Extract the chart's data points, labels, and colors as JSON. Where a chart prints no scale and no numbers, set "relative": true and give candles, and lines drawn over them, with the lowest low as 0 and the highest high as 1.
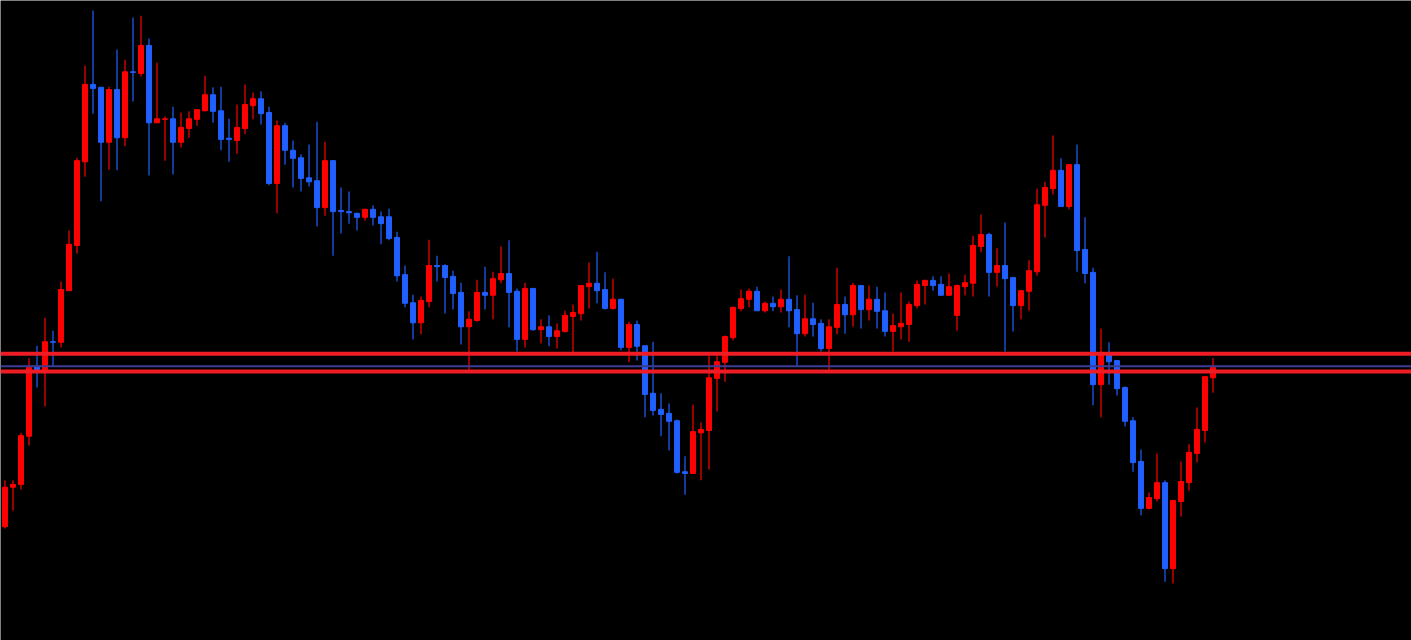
{
  "chart_data": {
    "type": "candlestick",
    "relative": true,
    "categories": [
      null,
      null,
      null,
      null,
      null,
      null,
      null,
      null,
      null,
      null,
      null,
      null,
      null,
      null,
      null,
      null,
      null,
      null,
      null,
      null,
      null,
      null,
      null,
      null,
      null,
      null,
      null,
      null,
      null,
      null,
      null,
      null,
      null,
      null,
      null,
      null,
      null,
      null,
      null,
      null,
      null,
      null,
      null,
      null,
      null,
      null,
      null,
      null,
      null,
      null,
      null,
      null,
      null,
      null,
      null,
      null,
      null,
      null,
      null,
      null,
      null,
      null,
      null,
      null,
      null,
      null,
      null,
      null,
      null,
      null,
      null,
      null,
      null,
      null,
      null,
      null,
      null,
      null,
      null,
      null,
      null,
      null,
      null,
      null,
      null,
      null,
      null,
      null,
      null,
      null,
      null,
      null,
      null,
      null,
      null,
      null,
      null,
      null,
      null,
      null,
      null,
      null,
      null,
      null,
      null,
      null,
      null,
      null,
      null,
      null,
      null,
      null,
      null,
      null,
      null,
      null,
      null,
      null,
      null,
      null,
      null,
      null,
      null,
      null,
      null,
      null,
      null,
      null,
      null,
      null,
      null,
      null,
      null,
      null,
      null,
      null,
      null,
      null,
      null,
      null,
      null,
      null,
      null,
      null,
      null,
      null,
      null,
      null,
      null,
      null,
      null,
      null
    ],
    "ohlc": [
      [
        0.099,
        0.18,
        0.096,
        0.168
      ],
      [
        0.168,
        0.18,
        0.127,
        0.173
      ],
      [
        0.173,
        0.263,
        0.164,
        0.258
      ],
      [
        0.257,
        0.393,
        0.241,
        0.377
      ],
      [
        0.379,
        0.415,
        0.342,
        0.373
      ],
      [
        0.373,
        0.464,
        0.309,
        0.422
      ],
      [
        0.422,
        0.441,
        0.379,
        0.421
      ],
      [
        0.421,
        0.527,
        0.412,
        0.513
      ],
      [
        0.511,
        0.616,
        0.511,
        0.592
      ],
      [
        0.59,
        0.743,
        0.576,
        0.738
      ],
      [
        0.736,
        0.904,
        0.71,
        0.871
      ],
      [
        0.871,
        1,
        0.82,
        0.864
      ],
      [
        0.866,
        0.866,
        0.667,
        0.77
      ],
      [
        0.77,
        0.867,
        0.722,
        0.862
      ],
      [
        0.862,
        0.932,
        0.721,
        0.778
      ],
      [
        0.778,
        0.914,
        0.763,
        0.893
      ],
      [
        0.893,
        0.988,
        0.841,
        0.892
      ],
      [
        0.89,
        0.991,
        0.885,
        0.939
      ],
      [
        0.939,
        0.951,
        0.712,
        0.804
      ],
      [
        0.804,
        0.909,
        0.804,
        0.811
      ],
      [
        0.81,
        0.815,
        0.738,
        0.811
      ],
      [
        0.811,
        0.832,
        0.714,
        0.77
      ],
      [
        0.77,
        0.822,
        0.761,
        0.796
      ],
      [
        0.794,
        0.824,
        0.778,
        0.811
      ],
      [
        0.81,
        0.827,
        0.799,
        0.827
      ],
      [
        0.825,
        0.886,
        0.824,
        0.853
      ],
      [
        0.853,
        0.866,
        0.804,
        0.824
      ],
      [
        0.825,
        0.867,
        0.756,
        0.775
      ],
      [
        0.777,
        0.811,
        0.736,
        0.775
      ],
      [
        0.773,
        0.836,
        0.75,
        0.796
      ],
      [
        0.794,
        0.871,
        0.784,
        0.836
      ],
      [
        0.834,
        0.857,
        0.81,
        0.846
      ],
      [
        0.846,
        0.859,
        0.801,
        0.82
      ],
      [
        0.822,
        0.832,
        0.695,
        0.698
      ],
      [
        0.698,
        0.808,
        0.646,
        0.799
      ],
      [
        0.799,
        0.804,
        0.731,
        0.756
      ],
      [
        0.756,
        0.773,
        0.691,
        0.742
      ],
      [
        0.743,
        0.749,
        0.684,
        0.707
      ],
      [
        0.708,
        0.766,
        0.693,
        0.701
      ],
      [
        0.703,
        0.806,
        0.623,
        0.656
      ],
      [
        0.656,
        0.771,
        0.642,
        0.738
      ],
      [
        0.738,
        0.738,
        0.572,
        0.649
      ],
      [
        0.651,
        0.691,
        0.611,
        0.649
      ],
      [
        0.649,
        0.684,
        0.628,
        0.647
      ],
      [
        0.646,
        0.647,
        0.616,
        0.639
      ],
      [
        0.639,
        0.654,
        0.633,
        0.653
      ],
      [
        0.653,
        0.66,
        0.625,
        0.639
      ],
      [
        0.64,
        0.649,
        0.592,
        0.628
      ],
      [
        0.64,
        0.654,
        0.599,
        0.602
      ],
      [
        0.604,
        0.614,
        0.527,
        0.537
      ],
      [
        0.539,
        0.555,
        0.482,
        0.489
      ],
      [
        0.49,
        0.504,
        0.426,
        0.455
      ],
      [
        0.455,
        0.501,
        0.435,
        0.494
      ],
      [
        0.492,
        0.6,
        0.482,
        0.555
      ],
      [
        0.555,
        0.572,
        0.527,
        0.553
      ],
      [
        0.555,
        0.557,
        0.471,
        0.534
      ],
      [
        0.536,
        0.546,
        0.478,
        0.506
      ],
      [
        0.508,
        0.525,
        0.417,
        0.448
      ],
      [
        0.448,
        0.475,
        0.373,
        0.461
      ],
      [
        0.459,
        0.53,
        0.457,
        0.508
      ],
      [
        0.508,
        0.553,
        0.478,
        0.503
      ],
      [
        0.503,
        0.544,
        0.461,
        0.532
      ],
      [
        0.53,
        0.588,
        0.524,
        0.541
      ],
      [
        0.541,
        0.599,
        0.447,
        0.508
      ],
      [
        0.51,
        0.515,
        0.405,
        0.426
      ],
      [
        0.426,
        0.525,
        0.412,
        0.515
      ],
      [
        0.515,
        0.515,
        0.441,
        0.443
      ],
      [
        0.443,
        0.461,
        0.419,
        0.448
      ],
      [
        0.448,
        0.468,
        0.414,
        0.431
      ],
      [
        0.431,
        0.454,
        0.41,
        0.441
      ],
      [
        0.44,
        0.476,
        0.438,
        0.468
      ],
      [
        0.466,
        0.487,
        0.403,
        0.473
      ],
      [
        0.471,
        0.52,
        0.459,
        0.52
      ],
      [
        0.518,
        0.56,
        0.48,
        0.524
      ],
      [
        0.524,
        0.579,
        0.489,
        0.511
      ],
      [
        0.513,
        0.543,
        0.478,
        0.48
      ],
      [
        0.48,
        0.532,
        0.478,
        0.496
      ],
      [
        0.496,
        0.497,
        0.407,
        0.412
      ],
      [
        0.412,
        0.457,
        0.386,
        0.452
      ],
      [
        0.452,
        0.459,
        0.389,
        0.414
      ],
      [
        0.415,
        0.415,
        0.29,
        0.33
      ],
      [
        0.332,
        0.422,
        0.293,
        0.302
      ],
      [
        0.304,
        0.332,
        0.257,
        0.295
      ],
      [
        0.297,
        0.314,
        0.232,
        0.283
      ],
      [
        0.284,
        0.286,
        0.192,
        0.194
      ],
      [
        0.195,
        0.222,
        0.155,
        0.192
      ],
      [
        0.192,
        0.312,
        0.192,
        0.265
      ],
      [
        0.263,
        0.281,
        0.18,
        0.269
      ],
      [
        0.267,
        0.398,
        0.199,
        0.359
      ],
      [
        0.358,
        0.398,
        0.3,
        0.387
      ],
      [
        0.386,
        0.433,
        0.352,
        0.431
      ],
      [
        0.429,
        0.483,
        0.424,
        0.482
      ],
      [
        0.48,
        0.513,
        0.475,
        0.497
      ],
      [
        0.496,
        0.515,
        0.482,
        0.51
      ],
      [
        0.51,
        0.518,
        0.476,
        0.476
      ],
      [
        0.476,
        0.492,
        0.473,
        0.489
      ],
      [
        0.489,
        0.501,
        0.475,
        0.483
      ],
      [
        0.483,
        0.513,
        0.473,
        0.496
      ],
      [
        0.496,
        0.571,
        0.447,
        0.476
      ],
      [
        0.478,
        0.503,
        0.38,
        0.436
      ],
      [
        0.436,
        0.504,
        0.431,
        0.462
      ],
      [
        0.462,
        0.49,
        0.431,
        0.452
      ],
      [
        0.454,
        0.461,
        0.405,
        0.41
      ],
      [
        0.41,
        0.461,
        0.373,
        0.448
      ],
      [
        0.447,
        0.551,
        0.435,
        0.487
      ],
      [
        0.487,
        0.501,
        0.436,
        0.469
      ],
      [
        0.469,
        0.525,
        0.448,
        0.52
      ],
      [
        0.52,
        0.52,
        0.445,
        0.478
      ],
      [
        0.478,
        0.52,
        0.459,
        0.496
      ],
      [
        0.496,
        0.518,
        0.445,
        0.475
      ],
      [
        0.476,
        0.508,
        0.431,
        0.44
      ],
      [
        0.44,
        0.471,
        0.405,
        0.45
      ],
      [
        0.448,
        0.508,
        0.426,
        0.454
      ],
      [
        0.452,
        0.492,
        0.422,
        0.487
      ],
      [
        0.485,
        0.529,
        0.48,
        0.522
      ],
      [
        0.52,
        0.53,
        0.487,
        0.529
      ],
      [
        0.529,
        0.536,
        0.511,
        0.52
      ],
      [
        0.522,
        0.536,
        0.503,
        0.503
      ],
      [
        0.503,
        0.541,
        0.503,
        0.518
      ],
      [
        0.468,
        0.522,
        0.441,
        0.52
      ],
      [
        0.518,
        0.539,
        0.503,
        0.525
      ],
      [
        0.524,
        0.607,
        0.501,
        0.59
      ],
      [
        0.588,
        0.644,
        0.578,
        0.609
      ],
      [
        0.609,
        0.612,
        0.501,
        0.543
      ],
      [
        0.543,
        0.585,
        0.518,
        0.555
      ],
      [
        0.555,
        0.63,
        0.405,
        0.532
      ],
      [
        0.534,
        0.534,
        0.44,
        0.485
      ],
      [
        0.485,
        0.511,
        0.461,
        0.511
      ],
      [
        0.51,
        0.564,
        0.476,
        0.546
      ],
      [
        0.544,
        0.689,
        0.537,
        0.661
      ],
      [
        0.66,
        0.701,
        0.604,
        0.691
      ],
      [
        0.689,
        0.782,
        0.679,
        0.721
      ],
      [
        0.721,
        0.742,
        0.658,
        0.658
      ],
      [
        0.658,
        0.731,
        0.653,
        0.731
      ],
      [
        0.731,
        0.766,
        0.544,
        0.581
      ],
      [
        0.583,
        0.639,
        0.524,
        0.541
      ],
      [
        0.543,
        0.551,
        0.311,
        0.347
      ],
      [
        0.347,
        0.445,
        0.29,
        0.401
      ],
      [
        0.401,
        0.421,
        0.347,
        0.387
      ],
      [
        0.389,
        0.389,
        0.328,
        0.34
      ],
      [
        0.342,
        0.344,
        0.274,
        0.283
      ],
      [
        0.284,
        0.29,
        0.195,
        0.211
      ],
      [
        0.213,
        0.234,
        0.119,
        0.131
      ],
      [
        0.131,
        0.159,
        0.129,
        0.15
      ],
      [
        0.148,
        0.227,
        0.143,
        0.176
      ],
      [
        0.176,
        0.18,
        0.003,
        0.026
      ],
      [
        0.026,
        0.145,
        0,
        0.145
      ],
      [
        0.143,
        0.213,
        0.117,
        0.178
      ],
      [
        0.176,
        0.243,
        0.162,
        0.229
      ],
      [
        0.227,
        0.307,
        0.211,
        0.269
      ],
      [
        0.267,
        0.361,
        0.246,
        0.361
      ],
      [
        0.359,
        0.393,
        0.333,
        0.377
      ]
    ],
    "colors": [
      "#ff0000",
      "#ff0000",
      "#ff0000",
      "#ff0000",
      "#2060ff",
      "#ff0000",
      "#2060ff",
      "#ff0000",
      "#ff0000",
      "#ff0000",
      "#ff0000",
      "#2060ff",
      "#2060ff",
      "#ff0000",
      "#2060ff",
      "#ff0000",
      "#2060ff",
      "#ff0000",
      "#2060ff",
      "#ff0000",
      "#ff0000",
      "#2060ff",
      "#ff0000",
      "#ff0000",
      "#ff0000",
      "#ff0000",
      "#2060ff",
      "#2060ff",
      "#2060ff",
      "#ff0000",
      "#ff0000",
      "#ff0000",
      "#2060ff",
      "#2060ff",
      "#ff0000",
      "#2060ff",
      "#2060ff",
      "#2060ff",
      "#2060ff",
      "#2060ff",
      "#ff0000",
      "#2060ff",
      "#2060ff",
      "#2060ff",
      "#2060ff",
      "#ff0000",
      "#2060ff",
      "#2060ff",
      "#2060ff",
      "#2060ff",
      "#2060ff",
      "#2060ff",
      "#ff0000",
      "#ff0000",
      "#2060ff",
      "#2060ff",
      "#2060ff",
      "#2060ff",
      "#ff0000",
      "#ff0000",
      "#2060ff",
      "#ff0000",
      "#ff0000",
      "#2060ff",
      "#2060ff",
      "#ff0000",
      "#2060ff",
      "#ff0000",
      "#2060ff",
      "#ff0000",
      "#ff0000",
      "#ff0000",
      "#ff0000",
      "#ff0000",
      "#2060ff",
      "#2060ff",
      "#ff0000",
      "#2060ff",
      "#ff0000",
      "#2060ff",
      "#2060ff",
      "#2060ff",
      "#2060ff",
      "#2060ff",
      "#2060ff",
      "#2060ff",
      "#ff0000",
      "#ff0000",
      "#ff0000",
      "#ff0000",
      "#ff0000",
      "#ff0000",
      "#ff0000",
      "#ff0000",
      "#2060ff",
      "#ff0000",
      "#2060ff",
      "#ff0000",
      "#2060ff",
      "#2060ff",
      "#ff0000",
      "#2060ff",
      "#2060ff",
      "#ff0000",
      "#ff0000",
      "#2060ff",
      "#ff0000",
      "#2060ff",
      "#ff0000",
      "#2060ff",
      "#2060ff",
      "#ff0000",
      "#ff0000",
      "#ff0000",
      "#ff0000",
      "#ff0000",
      "#2060ff",
      "#2060ff",
      "#ff0000",
      "#ff0000",
      "#ff0000",
      "#ff0000",
      "#ff0000",
      "#2060ff",
      "#ff0000",
      "#2060ff",
      "#2060ff",
      "#ff0000",
      "#ff0000",
      "#ff0000",
      "#ff0000",
      "#ff0000",
      "#2060ff",
      "#ff0000",
      "#2060ff",
      "#2060ff",
      "#2060ff",
      "#ff0000",
      "#2060ff",
      "#2060ff",
      "#2060ff",
      "#2060ff",
      "#2060ff",
      "#ff0000",
      "#ff0000",
      "#2060ff",
      "#ff0000",
      "#ff0000",
      "#ff0000",
      "#ff0000",
      "#ff0000",
      "#ff0000"
    ],
    "ref_lines": [
      {
        "axis": "y",
        "value": 0.401,
        "color": "#ee1c25"
      },
      {
        "axis": "y",
        "value": 0.37,
        "color": "#ee1c25"
      },
      {
        "axis": "y",
        "value": 0.379,
        "color": "#3c3c96"
      }
    ]
  }
}
